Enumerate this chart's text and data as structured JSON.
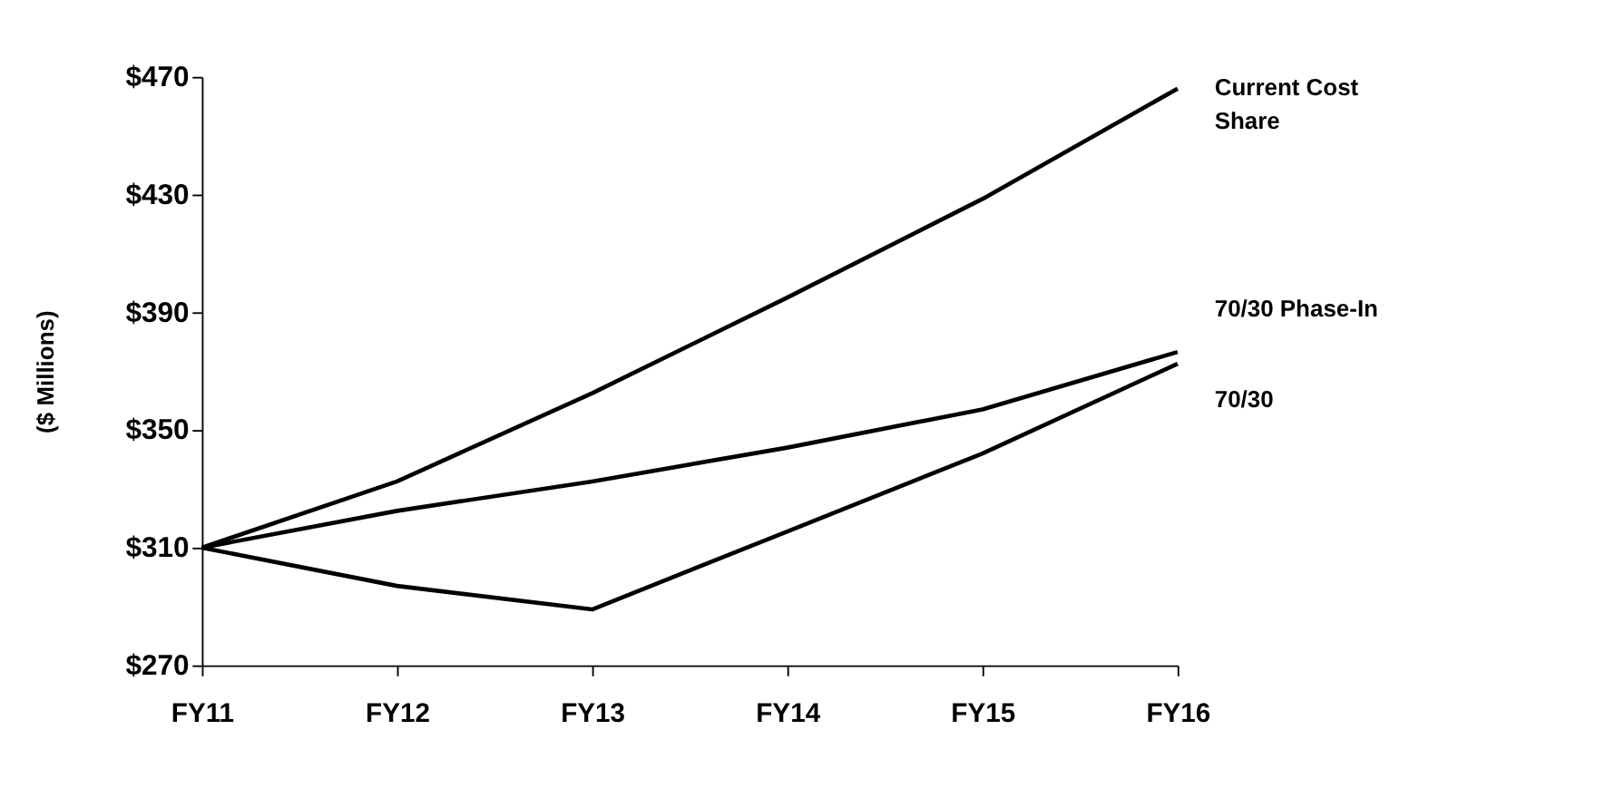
{
  "chart_data": {
    "type": "line",
    "ylabel": "($ Millions)",
    "categories": [
      "FY11",
      "FY12",
      "FY13",
      "FY14",
      "FY15",
      "FY16"
    ],
    "series": [
      {
        "name": "Current Cost Share",
        "color": "#000000",
        "values": [
          310,
          332.5,
          362.5,
          395,
          428.5,
          466
        ]
      },
      {
        "name": "70/30 Phase-In",
        "color": "#000000",
        "values": [
          310,
          322.5,
          332.5,
          344,
          357,
          376.5
        ]
      },
      {
        "name": "70/30",
        "color": "#000000",
        "values": [
          310,
          297,
          289,
          315.5,
          342,
          372.5
        ]
      }
    ],
    "ylim": [
      270,
      470
    ],
    "yticks": [
      {
        "value": 270,
        "label": "$270"
      },
      {
        "value": 310,
        "label": "$310"
      },
      {
        "value": 350,
        "label": "$350"
      },
      {
        "value": 390,
        "label": "$390"
      },
      {
        "value": 430,
        "label": "$430"
      },
      {
        "value": 470,
        "label": "$470"
      }
    ],
    "grid": false,
    "marker": "none",
    "line_style": "solid"
  }
}
